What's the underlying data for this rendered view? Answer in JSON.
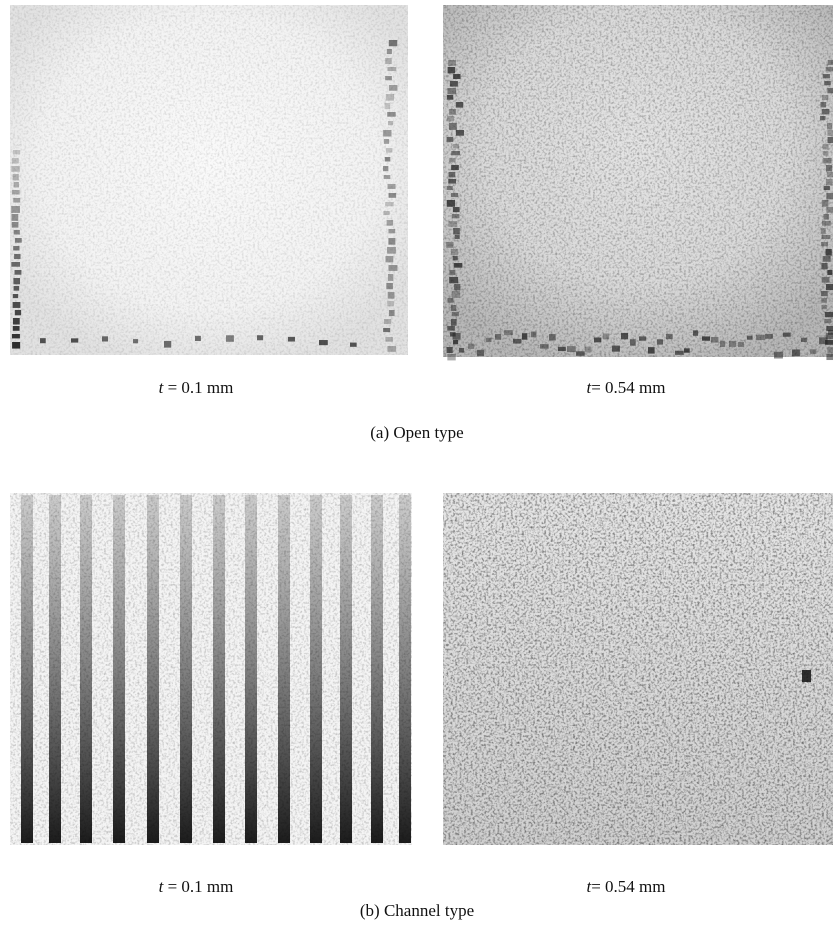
{
  "panels": [
    {
      "label": "(a) Open type",
      "images": [
        {
          "caption": {
            "variable": "t",
            "text": " = 0.1 mm"
          }
        },
        {
          "caption": {
            "variable": "t",
            "text": "= 0.54 mm"
          }
        }
      ]
    },
    {
      "label": "(b) Channel type",
      "images": [
        {
          "caption": {
            "variable": "t",
            "text": " = 0.1 mm"
          }
        },
        {
          "caption": {
            "variable": "t",
            "text": "= 0.54 mm"
          }
        }
      ]
    }
  ]
}
